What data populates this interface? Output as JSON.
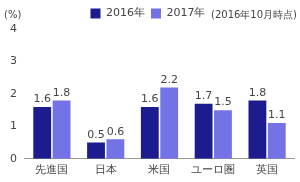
{
  "chart_data": {
    "type": "bar",
    "y_label": "(%)",
    "subtitle": "(2016年10月時点)",
    "categories": [
      "先進国",
      "日本",
      "米国",
      "ユーロ圏",
      "英国"
    ],
    "series": [
      {
        "name": "2016年",
        "color": "#1c1c8e",
        "values": [
          1.6,
          0.5,
          1.6,
          1.7,
          1.8
        ]
      },
      {
        "name": "2017年",
        "color": "#7373e6",
        "values": [
          1.8,
          0.6,
          2.2,
          1.5,
          1.1
        ]
      }
    ],
    "ylim": [
      0,
      4
    ],
    "yticks": [
      0,
      1,
      2,
      3,
      4
    ],
    "grid": false,
    "legend": "top",
    "data_labels": true
  }
}
